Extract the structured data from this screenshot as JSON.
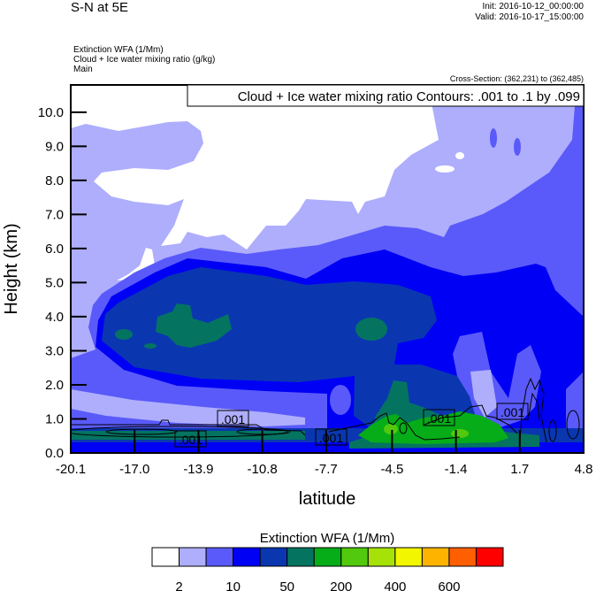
{
  "chart_data": {
    "type": "heatmap",
    "title": "S-N at 5E",
    "init": "Init: 2016-10-12_00:00:00",
    "valid": "Valid: 2016-10-17_15:00:00",
    "subtitles": [
      "Extinction WFA   (1/Mm)",
      "Cloud + Ice water mixing ratio   (g/kg)",
      "Main"
    ],
    "cross_section": "Cross-Section: (362,231) to (362,485)",
    "contour_info": "Cloud + Ice water mixing ratio Contours: .001 to .1 by .099",
    "contour_label": ".001",
    "contour_label_count": 5,
    "xlabel": "latitude",
    "ylabel": "Height (km)",
    "xlim": [
      -20.1,
      4.8
    ],
    "ylim": [
      0,
      10.8
    ],
    "x_ticks": [
      "-20.1",
      "-17.0",
      "-13.9",
      "-10.8",
      "-7.7",
      "-4.5",
      "-1.4",
      "1.7",
      "4.8"
    ],
    "y_ticks": [
      "0.0",
      "1.0",
      "2.0",
      "3.0",
      "4.0",
      "5.0",
      "6.0",
      "7.0",
      "8.0",
      "9.0",
      "10.0"
    ],
    "colorbar": {
      "title": "Extinction WFA  (1/Mm)",
      "colors": [
        "#ffffff",
        "#aeaefd",
        "#5a5afa",
        "#0000f5",
        "#0a37b0",
        "#047461",
        "#06ad18",
        "#52c90d",
        "#a6e207",
        "#f2f700",
        "#fdb300",
        "#ff5f00",
        "#ff0000"
      ],
      "labels": [
        "2",
        "10",
        "50",
        "200",
        "400",
        "600"
      ],
      "label_every": 2
    }
  }
}
